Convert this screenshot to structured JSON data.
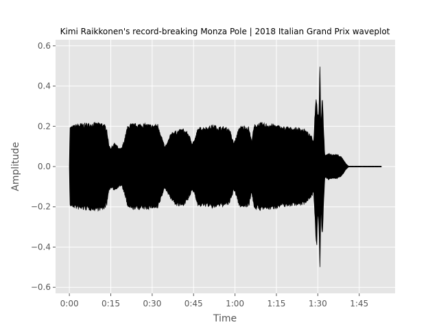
{
  "chart_data": {
    "type": "area",
    "title": "Kimi Raikkonen's record-breaking Monza Pole | 2018 Italian Grand Prix waveplot",
    "xlabel": "Time",
    "ylabel": "Amplitude",
    "x_unit": "seconds",
    "xlim": [
      -5,
      118
    ],
    "ylim": [
      -0.63,
      0.63
    ],
    "grid": true,
    "style": "ggplot",
    "background_color": "#e5e5e5",
    "grid_color": "#ffffff",
    "wave_color": "#000000",
    "x_ticks": [
      {
        "value": 0,
        "label": "0:00"
      },
      {
        "value": 15,
        "label": "0:15"
      },
      {
        "value": 30,
        "label": "0:30"
      },
      {
        "value": 45,
        "label": "0:45"
      },
      {
        "value": 60,
        "label": "1:00"
      },
      {
        "value": 75,
        "label": "1:15"
      },
      {
        "value": 90,
        "label": "1:30"
      },
      {
        "value": 105,
        "label": "1:45"
      }
    ],
    "y_ticks": [
      {
        "value": -0.6,
        "label": "−0.6"
      },
      {
        "value": -0.4,
        "label": "−0.4"
      },
      {
        "value": -0.2,
        "label": "−0.2"
      },
      {
        "value": 0.0,
        "label": "0.0"
      },
      {
        "value": 0.2,
        "label": "0.2"
      },
      {
        "value": 0.4,
        "label": "0.4"
      },
      {
        "value": 0.6,
        "label": "0.6"
      }
    ],
    "envelope": {
      "t": [
        0,
        0.2,
        3,
        6,
        9,
        12,
        13.5,
        14.3,
        15,
        16.5,
        18,
        19,
        20,
        21,
        22,
        24,
        26,
        28,
        30,
        32,
        33.5,
        34.5,
        35.5,
        37,
        39,
        41,
        43,
        44.5,
        45.5,
        46.5,
        48,
        50,
        52,
        54,
        56,
        58,
        59.5,
        60.5,
        61.5,
        63,
        65,
        66,
        67,
        69,
        71,
        73,
        75,
        77,
        79,
        81,
        83,
        85,
        86.5,
        87.8,
        88.5,
        89.2,
        89.6,
        89.9,
        90.2,
        90.5,
        90.8,
        91.1,
        91.6,
        92.2,
        92.5,
        92.8,
        93.4,
        94.2,
        95.5,
        97,
        98.5,
        99.5,
        100,
        100.8,
        101.2,
        113
      ],
      "upper": [
        0.0,
        0.2,
        0.215,
        0.218,
        0.22,
        0.22,
        0.2,
        0.11,
        0.095,
        0.12,
        0.09,
        0.095,
        0.14,
        0.2,
        0.215,
        0.215,
        0.215,
        0.215,
        0.21,
        0.215,
        0.15,
        0.1,
        0.12,
        0.175,
        0.18,
        0.19,
        0.17,
        0.12,
        0.14,
        0.19,
        0.2,
        0.2,
        0.21,
        0.2,
        0.2,
        0.19,
        0.12,
        0.15,
        0.2,
        0.205,
        0.2,
        0.13,
        0.21,
        0.22,
        0.215,
        0.215,
        0.21,
        0.2,
        0.2,
        0.195,
        0.195,
        0.19,
        0.17,
        0.15,
        0.13,
        0.34,
        0.35,
        0.28,
        0.26,
        0.33,
        0.57,
        0.18,
        0.38,
        0.16,
        0.06,
        0.055,
        0.065,
        0.065,
        0.06,
        0.06,
        0.05,
        0.03,
        0.018,
        0.006,
        0.002,
        0.002
      ],
      "lower": [
        0.0,
        -0.2,
        -0.215,
        -0.218,
        -0.22,
        -0.22,
        -0.2,
        -0.12,
        -0.11,
        -0.12,
        -0.1,
        -0.1,
        -0.14,
        -0.2,
        -0.215,
        -0.215,
        -0.215,
        -0.215,
        -0.21,
        -0.215,
        -0.15,
        -0.11,
        -0.13,
        -0.17,
        -0.2,
        -0.2,
        -0.17,
        -0.12,
        -0.14,
        -0.2,
        -0.2,
        -0.2,
        -0.21,
        -0.2,
        -0.2,
        -0.19,
        -0.12,
        -0.15,
        -0.2,
        -0.205,
        -0.2,
        -0.13,
        -0.21,
        -0.22,
        -0.215,
        -0.215,
        -0.21,
        -0.2,
        -0.2,
        -0.195,
        -0.195,
        -0.19,
        -0.17,
        -0.15,
        -0.13,
        -0.34,
        -0.43,
        -0.28,
        -0.26,
        -0.33,
        -0.57,
        -0.18,
        -0.38,
        -0.16,
        -0.06,
        -0.055,
        -0.065,
        -0.065,
        -0.06,
        -0.06,
        -0.05,
        -0.03,
        -0.018,
        -0.006,
        -0.002,
        -0.002
      ]
    }
  }
}
